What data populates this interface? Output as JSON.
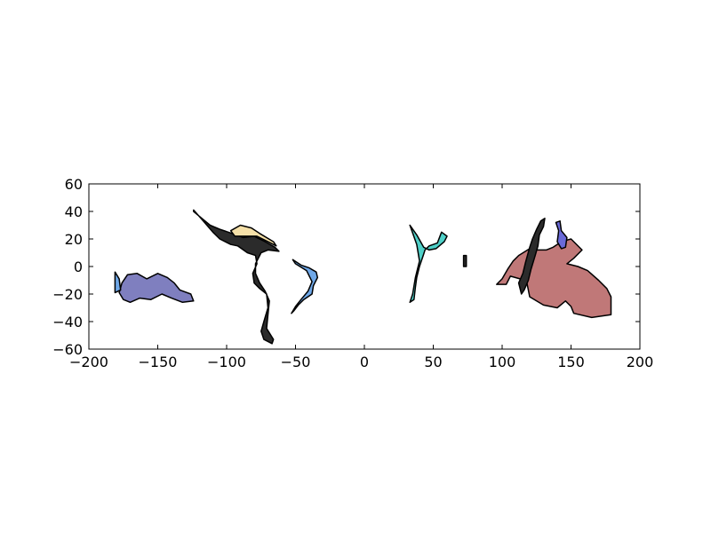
{
  "chart_data": {
    "type": "area",
    "title": "",
    "xlabel": "",
    "ylabel": "",
    "xlim": [
      -200,
      200
    ],
    "ylim": [
      -60,
      60
    ],
    "xticks": [
      -200,
      -150,
      -100,
      -50,
      0,
      50,
      100,
      150,
      200
    ],
    "yticks": [
      60,
      40,
      20,
      0,
      -20,
      -40,
      -60
    ],
    "xtick_labels": [
      "−200",
      "−150",
      "−100",
      "−50",
      "0",
      "50",
      "100",
      "150",
      "200"
    ],
    "ytick_labels": [
      "60",
      "40",
      "20",
      "0",
      "−20",
      "−40",
      "−60"
    ],
    "grid": false,
    "legend": "none",
    "series": [
      {
        "color": "#7f7fbf",
        "outline": [
          [
            -172,
            -6
          ],
          [
            -165,
            -5
          ],
          [
            -158,
            -9
          ],
          [
            -150,
            -5
          ],
          [
            -143,
            -8
          ],
          [
            -138,
            -12
          ],
          [
            -134,
            -17
          ],
          [
            -126,
            -20
          ],
          [
            -124,
            -25
          ],
          [
            -132,
            -26
          ],
          [
            -140,
            -23
          ],
          [
            -147,
            -20
          ],
          [
            -155,
            -24
          ],
          [
            -163,
            -23
          ],
          [
            -170,
            -26
          ],
          [
            -175,
            -24
          ],
          [
            -178,
            -19
          ],
          [
            -176,
            -12
          ]
        ]
      },
      {
        "color": "#6fa8e8",
        "outline": [
          [
            -181,
            -4
          ],
          [
            -178,
            -9
          ],
          [
            -177,
            -17
          ],
          [
            -181,
            -19
          ]
        ]
      },
      {
        "color": "#2b2b2b",
        "outline": [
          [
            -124,
            41
          ],
          [
            -117,
            33
          ],
          [
            -110,
            25
          ],
          [
            -105,
            20
          ],
          [
            -97,
            16
          ],
          [
            -92,
            15
          ],
          [
            -85,
            10
          ],
          [
            -79,
            8
          ],
          [
            -78,
            2
          ],
          [
            -81,
            -5
          ],
          [
            -80,
            -12
          ],
          [
            -76,
            -16
          ],
          [
            -71,
            -20
          ],
          [
            -70,
            -30
          ],
          [
            -73,
            -40
          ],
          [
            -75,
            -47
          ],
          [
            -73,
            -53
          ],
          [
            -67,
            -56
          ],
          [
            -66,
            -53
          ],
          [
            -71,
            -45
          ],
          [
            -70,
            -35
          ],
          [
            -69,
            -25
          ],
          [
            -72,
            -18
          ],
          [
            -76,
            -12
          ],
          [
            -79,
            -5
          ],
          [
            -79,
            2
          ],
          [
            -75,
            10
          ],
          [
            -70,
            12
          ],
          [
            -62,
            11
          ],
          [
            -65,
            14
          ],
          [
            -72,
            18
          ],
          [
            -80,
            22
          ],
          [
            -88,
            21
          ],
          [
            -96,
            24
          ],
          [
            -105,
            27
          ],
          [
            -112,
            30
          ],
          [
            -118,
            35
          ],
          [
            -124,
            40
          ]
        ]
      },
      {
        "color": "#6fa8e8",
        "outline": [
          [
            -52,
            5
          ],
          [
            -46,
            1
          ],
          [
            -40,
            -1
          ],
          [
            -35,
            -4
          ],
          [
            -34,
            -8
          ],
          [
            -37,
            -14
          ],
          [
            -38,
            -20
          ],
          [
            -44,
            -24
          ],
          [
            -48,
            -28
          ],
          [
            -51,
            -32
          ],
          [
            -53,
            -34
          ],
          [
            -50,
            -29
          ],
          [
            -46,
            -24
          ],
          [
            -41,
            -18
          ],
          [
            -38,
            -11
          ],
          [
            -42,
            -3
          ],
          [
            -50,
            2
          ]
        ]
      },
      {
        "color": "#f5e0a8",
        "outline": [
          [
            -97,
            26
          ],
          [
            -90,
            30
          ],
          [
            -82,
            28
          ],
          [
            -76,
            24
          ],
          [
            -66,
            18
          ],
          [
            -64,
            15
          ],
          [
            -70,
            18
          ],
          [
            -78,
            22
          ],
          [
            -86,
            22
          ],
          [
            -94,
            22
          ]
        ]
      },
      {
        "color": "#4fd0c8",
        "outline": [
          [
            33,
            30
          ],
          [
            38,
            23
          ],
          [
            43,
            14
          ],
          [
            47,
            12
          ],
          [
            52,
            13
          ],
          [
            58,
            18
          ],
          [
            60,
            22
          ],
          [
            56,
            25
          ],
          [
            53,
            17
          ],
          [
            47,
            15
          ],
          [
            44,
            12
          ],
          [
            43,
            9
          ],
          [
            40,
            0
          ],
          [
            38,
            -8
          ],
          [
            37,
            -15
          ],
          [
            36,
            -24
          ],
          [
            33,
            -26
          ],
          [
            35,
            -20
          ],
          [
            37,
            -8
          ],
          [
            40,
            4
          ],
          [
            38,
            16
          ]
        ]
      },
      {
        "color": "#2b2b2b",
        "outline": [
          [
            72,
            8
          ],
          [
            74,
            8
          ],
          [
            74,
            0
          ],
          [
            72,
            0
          ]
        ]
      },
      {
        "color": "#c07878",
        "outline": [
          [
            96,
            -13
          ],
          [
            100,
            -9
          ],
          [
            104,
            -2
          ],
          [
            108,
            4
          ],
          [
            112,
            8
          ],
          [
            120,
            13
          ],
          [
            125,
            12
          ],
          [
            132,
            12
          ],
          [
            137,
            14
          ],
          [
            143,
            18
          ],
          [
            150,
            20
          ],
          [
            158,
            12
          ],
          [
            152,
            6
          ],
          [
            147,
            2
          ],
          [
            155,
            0
          ],
          [
            162,
            -3
          ],
          [
            170,
            -10
          ],
          [
            176,
            -16
          ],
          [
            179,
            -22
          ],
          [
            179,
            -35
          ],
          [
            165,
            -37
          ],
          [
            152,
            -34
          ],
          [
            150,
            -29
          ],
          [
            146,
            -25
          ],
          [
            140,
            -30
          ],
          [
            130,
            -28
          ],
          [
            120,
            -22
          ],
          [
            118,
            -12
          ],
          [
            113,
            -9
          ],
          [
            106,
            -7
          ],
          [
            103,
            -13
          ]
        ]
      },
      {
        "color": "#2b2b2b",
        "outline": [
          [
            117,
            3
          ],
          [
            120,
            14
          ],
          [
            122,
            20
          ],
          [
            125,
            27
          ],
          [
            128,
            33
          ],
          [
            131,
            35
          ],
          [
            130,
            29
          ],
          [
            127,
            23
          ],
          [
            126,
            15
          ],
          [
            124,
            8
          ],
          [
            121,
            -2
          ],
          [
            119,
            -10
          ],
          [
            116,
            -17
          ],
          [
            114,
            -20
          ],
          [
            112,
            -12
          ],
          [
            115,
            -5
          ]
        ]
      },
      {
        "color": "#6a6ad8",
        "outline": [
          [
            139,
            32
          ],
          [
            142,
            33
          ],
          [
            143,
            26
          ],
          [
            147,
            21
          ],
          [
            146,
            14
          ],
          [
            143,
            13
          ],
          [
            140,
            18
          ],
          [
            141,
            26
          ]
        ]
      }
    ]
  }
}
